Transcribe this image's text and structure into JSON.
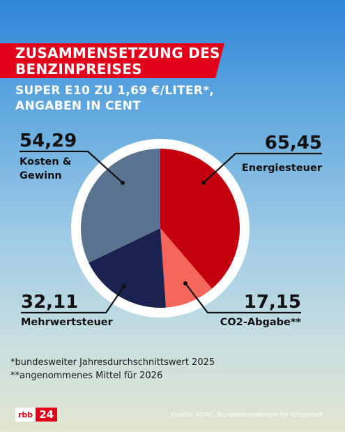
{
  "title_lines": [
    "ZUSAMMENSETZUNG DES",
    "BENZINPREISES"
  ],
  "subtitle_lines": [
    "SUPER E10 ZU 1,69 €/LITER*,",
    "ANGABEN IN CENT"
  ],
  "chart_data": {
    "type": "pie",
    "slices": [
      {
        "value_label": "65,45",
        "value": 65.45,
        "label": "Energiesteuer",
        "color": "#c4000f"
      },
      {
        "value_label": "17,15",
        "value": 17.15,
        "label": "CO2-Abgabe**",
        "color": "#f4675a"
      },
      {
        "value_label": "32,11",
        "value": 32.11,
        "label": "Mehrwertsteuer",
        "color": "#1a2350"
      },
      {
        "value_label": "54,29",
        "value": 54.29,
        "label": "Kosten & Gewinn",
        "color": "#5a7390"
      }
    ],
    "total_label": "1,69 €/Liter",
    "start_angle": "12 o'clock, clockwise"
  },
  "footnotes": [
    "*bundesweiter Jahresdurchschnittswert 2025",
    "**angenommenes Mittel für 2026"
  ],
  "logo": {
    "brand": "rbb",
    "number": "24"
  },
  "source": "Quelle: ADAC, Bundesministerium für Wirtschaft"
}
